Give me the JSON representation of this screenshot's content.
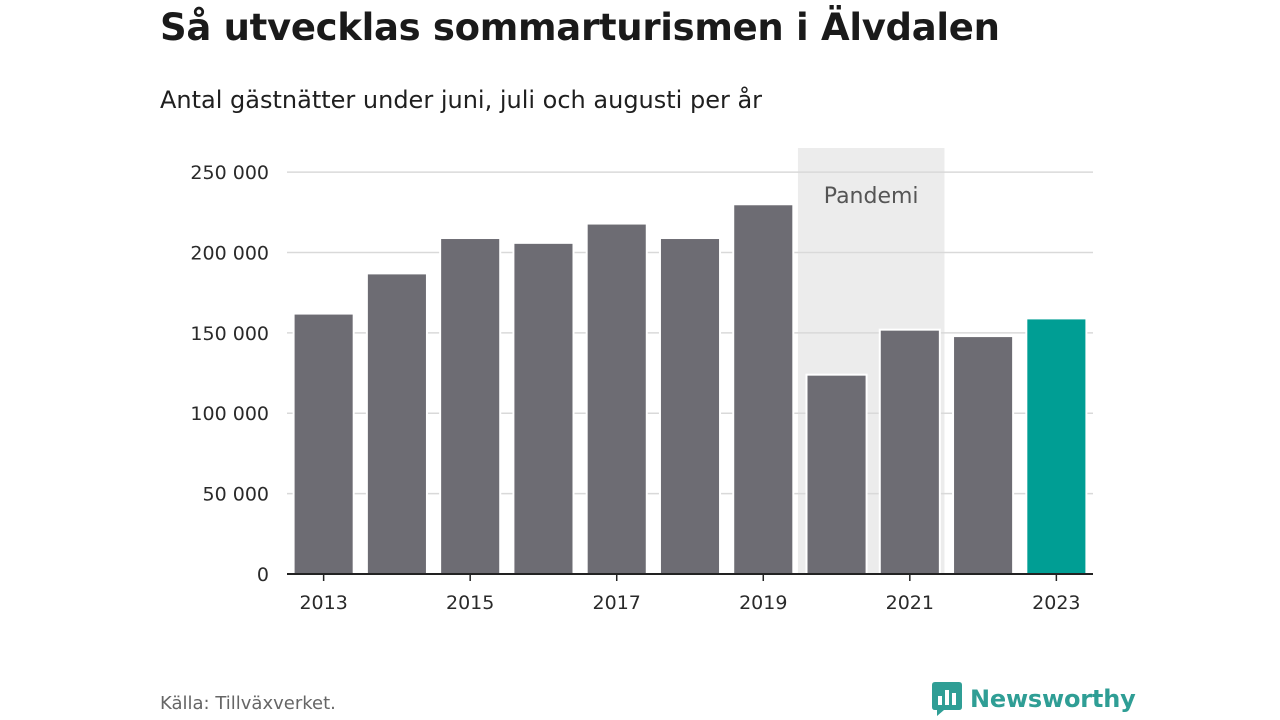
{
  "title": "Så utvecklas sommarturismen i Älvdalen",
  "subtitle": "Antal gästnätter under juni, juli och augusti per år",
  "source": "Källa: Tillväxverket.",
  "brand": "Newsworthy",
  "brand_icon": "newsworthy-logo-icon",
  "colors": {
    "bar": "#6d6c73",
    "highlight": "#009e94",
    "band": "#ececec",
    "grid": "#d9d9d9",
    "axis": "#222222",
    "brand": "#2f9e95"
  },
  "chart_data": {
    "type": "bar",
    "title": "Så utvecklas sommarturismen i Älvdalen",
    "subtitle": "Antal gästnätter under juni, juli och augusti per år",
    "categories": [
      "2013",
      "2014",
      "2015",
      "2016",
      "2017",
      "2018",
      "2019",
      "2020",
      "2021",
      "2022",
      "2023"
    ],
    "values": [
      162000,
      187000,
      209000,
      206000,
      218000,
      209000,
      230000,
      124000,
      152000,
      148000,
      159000
    ],
    "highlight": [
      "2023"
    ],
    "xticks": [
      "2013",
      "2015",
      "2017",
      "2019",
      "2021",
      "2023"
    ],
    "yticks": [
      0,
      50000,
      100000,
      150000,
      200000,
      250000
    ],
    "ytick_labels": [
      "0",
      "50 000",
      "100 000",
      "150 000",
      "200 000",
      "250 000"
    ],
    "ylim": [
      0,
      265000
    ],
    "grid": true,
    "annotations": [
      {
        "label": "Pandemi",
        "from": "2020",
        "to": "2021"
      }
    ]
  }
}
